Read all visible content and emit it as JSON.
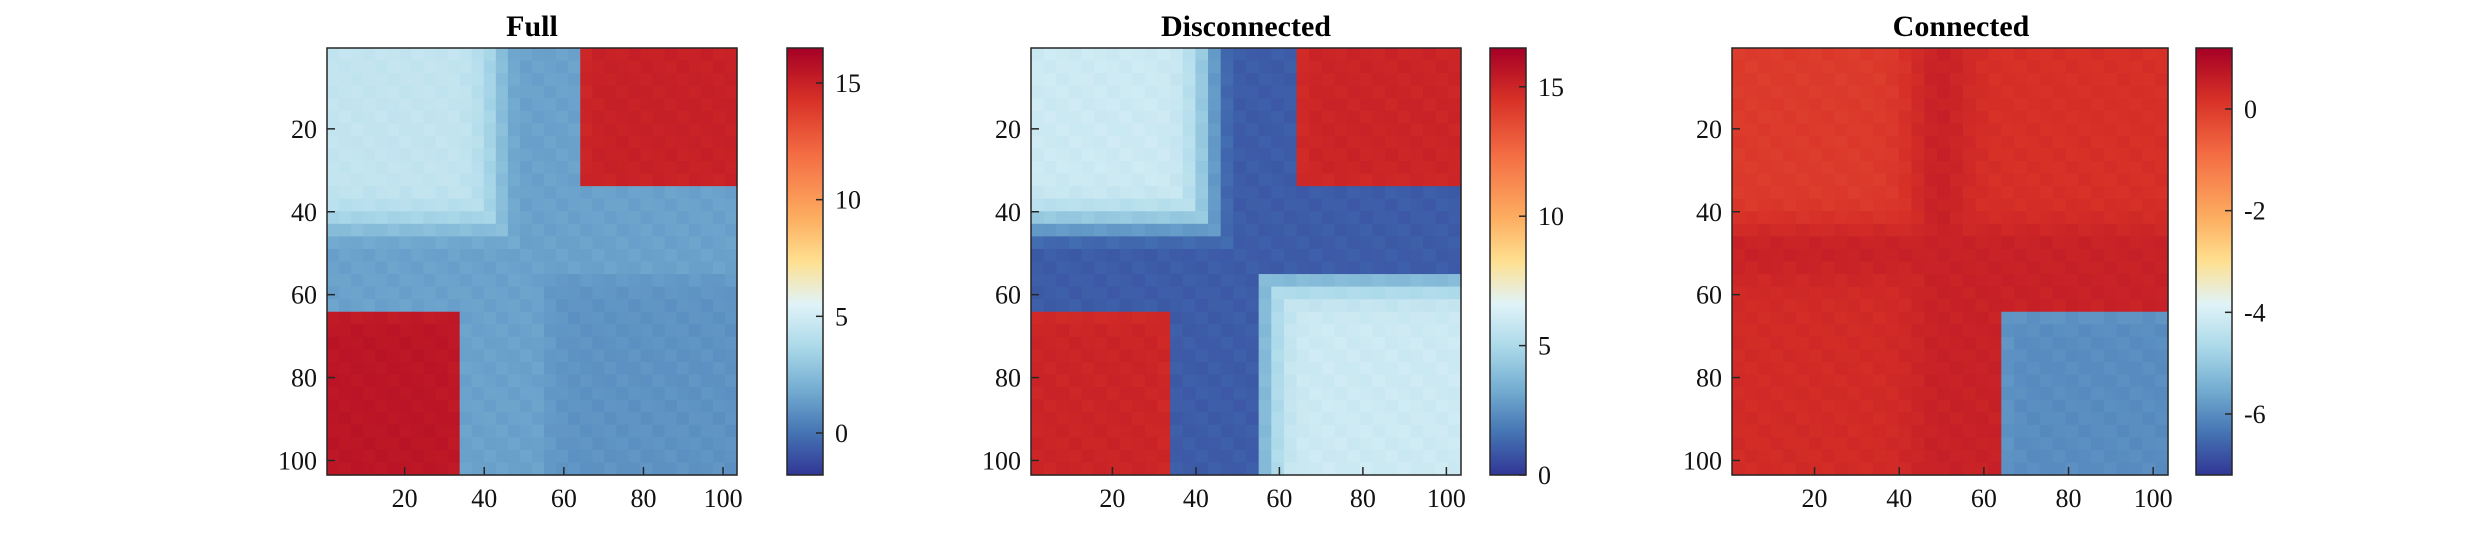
{
  "chart_data": [
    {
      "type": "heatmap",
      "title": "Full",
      "xlabel": "",
      "ylabel": "",
      "xlim": [
        1,
        103
      ],
      "ylim": [
        1,
        103
      ],
      "xticks": [
        20,
        40,
        60,
        80,
        100
      ],
      "yticks": [
        20,
        40,
        60,
        80,
        100
      ],
      "colorbar": {
        "min": -1.8,
        "max": 16.5,
        "ticks": [
          0,
          5,
          10,
          15
        ],
        "colormap": "RdYlBu_r"
      },
      "blocks": [
        {
          "rows": [
            1,
            50
          ],
          "cols": [
            1,
            50
          ],
          "value": 4.5
        },
        {
          "rows": [
            1,
            35
          ],
          "cols": [
            65,
            103
          ],
          "value": 15.0
        },
        {
          "rows": [
            65,
            103
          ],
          "cols": [
            1,
            35
          ],
          "value": 15.5
        },
        {
          "rows": [
            55,
            103
          ],
          "cols": [
            55,
            103
          ],
          "value": 1.0
        }
      ],
      "cross": {
        "center": 50,
        "value": 1.5
      }
    },
    {
      "type": "heatmap",
      "title": "Disconnected",
      "xlabel": "",
      "ylabel": "",
      "xlim": [
        1,
        103
      ],
      "ylim": [
        1,
        103
      ],
      "xticks": [
        20,
        40,
        60,
        80,
        100
      ],
      "yticks": [
        20,
        40,
        60,
        80,
        100
      ],
      "colorbar": {
        "min": 0,
        "max": 16.5,
        "ticks": [
          0,
          5,
          10,
          15
        ],
        "colormap": "RdYlBu_r"
      },
      "blocks": [
        {
          "rows": [
            1,
            50
          ],
          "cols": [
            1,
            50
          ],
          "value": 6.0
        },
        {
          "rows": [
            1,
            35
          ],
          "cols": [
            65,
            103
          ],
          "value": 15.0
        },
        {
          "rows": [
            65,
            103
          ],
          "cols": [
            1,
            35
          ],
          "value": 15.0
        },
        {
          "rows": [
            55,
            103
          ],
          "cols": [
            55,
            103
          ],
          "value": 6.0
        }
      ],
      "cross": {
        "center": 50,
        "value": 1.0
      }
    },
    {
      "type": "heatmap",
      "title": "Connected",
      "xlabel": "",
      "ylabel": "",
      "xlim": [
        1,
        103
      ],
      "ylim": [
        1,
        103
      ],
      "xticks": [
        20,
        40,
        60,
        80,
        100
      ],
      "yticks": [
        20,
        40,
        60,
        80,
        100
      ],
      "colorbar": {
        "min": -7.2,
        "max": 1.2,
        "ticks": [
          0,
          -2,
          -4,
          -6
        ],
        "colormap": "RdYlBu_r"
      },
      "blocks": [
        {
          "rows": [
            1,
            50
          ],
          "cols": [
            1,
            50
          ],
          "value": 0.0
        },
        {
          "rows": [
            1,
            50
          ],
          "cols": [
            50,
            103
          ],
          "value": 0.2
        },
        {
          "rows": [
            50,
            103
          ],
          "cols": [
            1,
            50
          ],
          "value": 0.3
        },
        {
          "rows": [
            65,
            103
          ],
          "cols": [
            65,
            103
          ],
          "value": -6.0
        }
      ],
      "cross": {
        "center": 50,
        "value": 0.5
      }
    }
  ]
}
